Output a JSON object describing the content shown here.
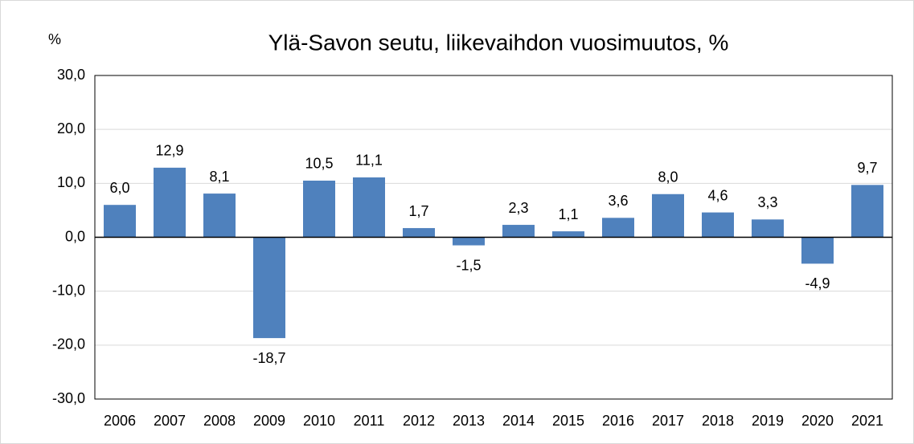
{
  "chart_data": {
    "type": "bar",
    "title": "Ylä-Savon seutu, liikevaihdon vuosimuutos, %",
    "y_label": "%",
    "categories": [
      "2006",
      "2007",
      "2008",
      "2009",
      "2010",
      "2011",
      "2012",
      "2013",
      "2014",
      "2015",
      "2016",
      "2017",
      "2018",
      "2019",
      "2020",
      "2021"
    ],
    "values": [
      6.0,
      12.9,
      8.1,
      -18.7,
      10.5,
      11.1,
      1.7,
      -1.5,
      2.3,
      1.1,
      3.6,
      8.0,
      4.6,
      3.3,
      -4.9,
      9.7
    ],
    "value_labels": [
      "6,0",
      "12,9",
      "8,1",
      "-18,7",
      "10,5",
      "11,1",
      "1,7",
      "-1,5",
      "2,3",
      "1,1",
      "3,6",
      "8,0",
      "4,6",
      "3,3",
      "-4,9",
      "9,7"
    ],
    "color": "#4f81bd",
    "ylim": [
      -30,
      30
    ],
    "yticks": [
      {
        "value": -30,
        "label": "-30,0"
      },
      {
        "value": -20,
        "label": "-20,0"
      },
      {
        "value": -10,
        "label": "-10,0"
      },
      {
        "value": 0,
        "label": "0,0"
      },
      {
        "value": 10,
        "label": "10,0"
      },
      {
        "value": 20,
        "label": "20,0"
      },
      {
        "value": 30,
        "label": "30,0"
      }
    ],
    "grid": true
  }
}
